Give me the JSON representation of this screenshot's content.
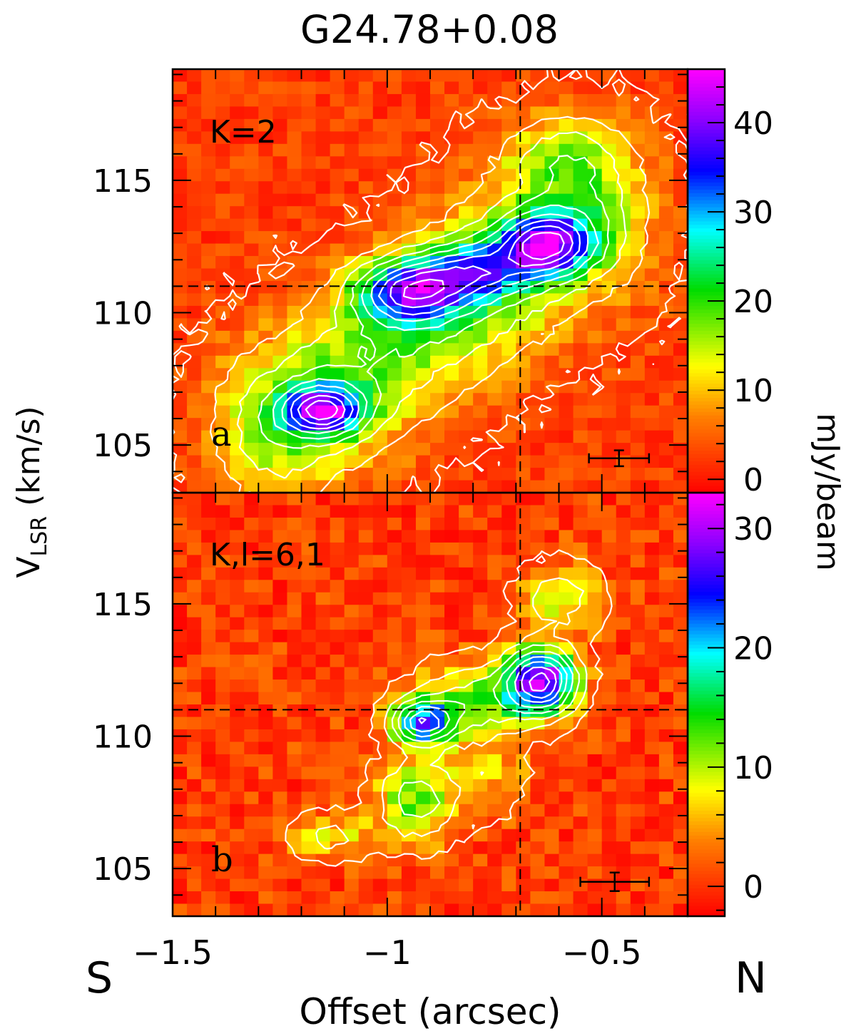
{
  "figure": {
    "title": "G24.78+0.08",
    "ylabel_main": "V",
    "ylabel_sub": "LSR",
    "ylabel_rest": " (km/s)",
    "xlabel": "Offset (arcsec)",
    "colorbar_label": "mJy/beam",
    "left_direction": "S",
    "right_direction": "N"
  },
  "chart_data": [
    {
      "type": "heatmap",
      "panel_letter": "a",
      "transition": "K=2",
      "xlim": [
        -1.5,
        -0.3
      ],
      "ylim": [
        103.2,
        119.2
      ],
      "x_ticks": [
        -1.5,
        -1,
        -0.5
      ],
      "x_tick_labels": [
        "−1.5",
        "−1",
        "−0.5"
      ],
      "y_ticks": [
        105,
        110,
        115
      ],
      "y_tick_labels": [
        "105",
        "110",
        "115"
      ],
      "colorbar": {
        "min": -1.5,
        "max": 46,
        "ticks": [
          0,
          10,
          20,
          30,
          40
        ],
        "tick_labels": [
          "0",
          "10",
          "20",
          "30",
          "40"
        ]
      },
      "reference_lines": {
        "x": -0.69,
        "y": 111.0
      },
      "error_bar": {
        "x": -0.46,
        "y": 104.5,
        "xerr": 0.07,
        "yerr": 0.3
      },
      "components": [
        {
          "x": -1.15,
          "y": 106.3,
          "peak": 46
        },
        {
          "x": -0.95,
          "y": 110.8,
          "peak": 42
        },
        {
          "x": -0.63,
          "y": 112.6,
          "peak": 46
        }
      ],
      "background": 4
    },
    {
      "type": "heatmap",
      "panel_letter": "b",
      "transition": "K,l=6,1",
      "xlim": [
        -1.5,
        -0.3
      ],
      "ylim": [
        103.2,
        119.2
      ],
      "x_ticks": [
        -1.5,
        -1,
        -0.5
      ],
      "x_tick_labels": [
        "−1.5",
        "−1",
        "−0.5"
      ],
      "y_ticks": [
        105,
        110,
        115
      ],
      "y_tick_labels": [
        "105",
        "110",
        "115"
      ],
      "colorbar": {
        "min": -2.5,
        "max": 33,
        "ticks": [
          0,
          10,
          20,
          30
        ],
        "tick_labels": [
          "0",
          "10",
          "20",
          "30"
        ]
      },
      "reference_lines": {
        "x": -0.69,
        "y": 111.0
      },
      "error_bar": {
        "x": -0.47,
        "y": 104.5,
        "xerr": 0.08,
        "yerr": 0.35
      },
      "components": [
        {
          "x": -0.92,
          "y": 110.5,
          "peak": 25
        },
        {
          "x": -0.64,
          "y": 112.0,
          "peak": 33
        },
        {
          "x": -0.92,
          "y": 107.5,
          "peak": 14
        },
        {
          "x": -1.15,
          "y": 106.0,
          "peak": 8
        }
      ],
      "background": 2
    }
  ]
}
